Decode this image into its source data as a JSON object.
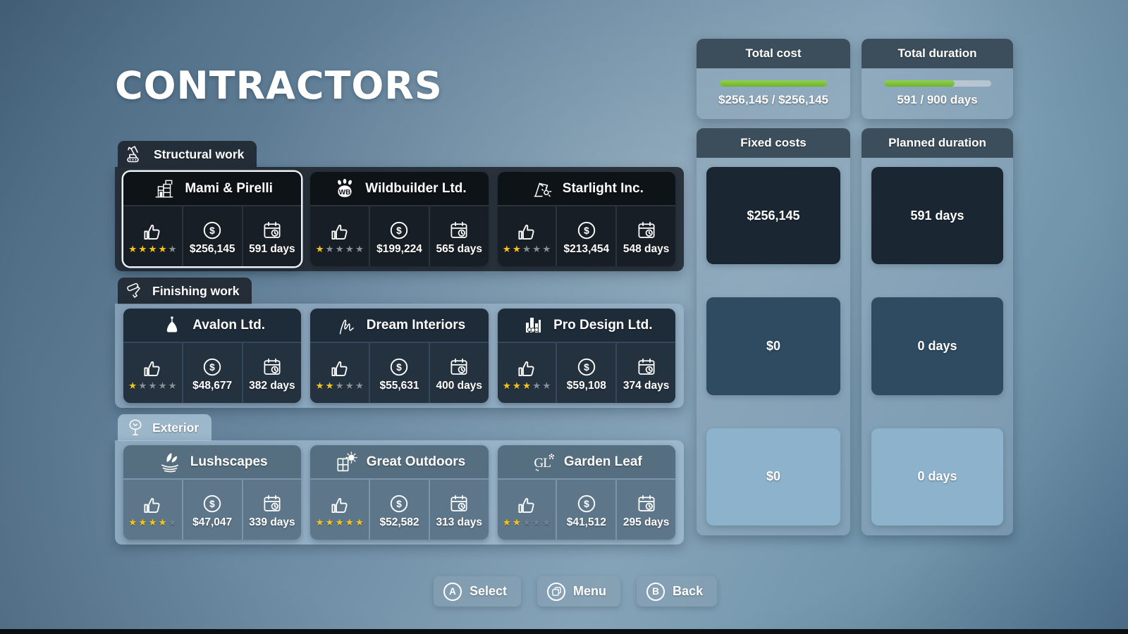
{
  "page_title": "CONTRACTORS",
  "sections": [
    {
      "label": "Structural work",
      "contractors": [
        {
          "name": "Mami & Pirelli",
          "stars": 4,
          "cost": "$256,145",
          "duration": "591 days"
        },
        {
          "name": "Wildbuilder Ltd.",
          "logo_text": "WB",
          "stars": 1,
          "cost": "$199,224",
          "duration": "565 days"
        },
        {
          "name": "Starlight Inc.",
          "stars": 2,
          "cost": "$213,454",
          "duration": "548 days"
        }
      ]
    },
    {
      "label": "Finishing work",
      "contractors": [
        {
          "name": "Avalon Ltd.",
          "stars": 1,
          "cost": "$48,677",
          "duration": "382 days"
        },
        {
          "name": "Dream Interiors",
          "stars": 2,
          "cost": "$55,631",
          "duration": "400 days"
        },
        {
          "name": "Pro Design Ltd.",
          "stars": 3,
          "cost": "$59,108",
          "duration": "374 days"
        }
      ]
    },
    {
      "label": "Exterior",
      "contractors": [
        {
          "name": "Lushscapes",
          "stars": 4,
          "cost": "$47,047",
          "duration": "339 days"
        },
        {
          "name": "Great Outdoors",
          "stars": 5,
          "cost": "$52,582",
          "duration": "313 days"
        },
        {
          "name": "Garden Leaf",
          "logo_text": "GL",
          "stars": 2,
          "cost": "$41,512",
          "duration": "295 days"
        }
      ]
    }
  ],
  "summary": {
    "total_cost": {
      "title": "Total cost",
      "value": "$256,145 / $256,145",
      "pct": 100
    },
    "total_duration": {
      "title": "Total duration",
      "value": "591 / 900 days",
      "pct": 66
    },
    "fixed_costs": {
      "title": "Fixed costs",
      "rows": [
        "$256,145",
        "$0",
        "$0"
      ]
    },
    "planned_duration": {
      "title": "Planned duration",
      "rows": [
        "591 days",
        "0 days",
        "0 days"
      ]
    }
  },
  "footer": {
    "select": {
      "key": "A",
      "label": "Select"
    },
    "menu": {
      "label": "Menu"
    },
    "back": {
      "key": "B",
      "label": "Back"
    }
  },
  "colors": {
    "star_filled": "#f2c21d",
    "progress_green": "#6db22d",
    "selected_outline": "#eef3f7"
  }
}
